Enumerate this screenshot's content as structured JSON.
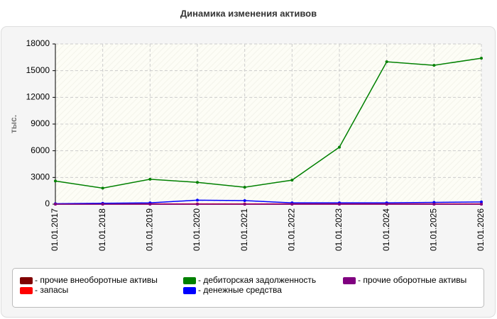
{
  "chart_data": {
    "type": "line",
    "title": "Динамика изменения активов",
    "y_label": "тыс.",
    "categories": [
      "01.01.2017",
      "01.01.2018",
      "01.01.2019",
      "01.01.2020",
      "01.01.2021",
      "01.01.2022",
      "01.01.2023",
      "01.01.2024",
      "01.01.2025",
      "01.01.2026"
    ],
    "series": [
      {
        "name": "- прочие внеоборотные активы",
        "color": "#800000",
        "values": [
          0,
          0,
          0,
          0,
          0,
          0,
          0,
          0,
          0,
          0
        ]
      },
      {
        "name": "- запасы",
        "color": "#ff0000",
        "values": [
          30,
          30,
          30,
          30,
          30,
          30,
          30,
          30,
          30,
          30
        ]
      },
      {
        "name": "- дебиторская задолженность",
        "color": "#008000",
        "values": [
          2600,
          1800,
          2800,
          2450,
          1900,
          2700,
          6400,
          16000,
          15600,
          16400
        ]
      },
      {
        "name": "- денежные средства",
        "color": "#0000ff",
        "values": [
          50,
          100,
          150,
          450,
          400,
          150,
          150,
          150,
          200,
          250
        ]
      },
      {
        "name": "- прочие оборотные активы",
        "color": "#800080",
        "values": [
          0,
          0,
          0,
          0,
          0,
          0,
          0,
          0,
          0,
          0
        ]
      }
    ],
    "ylim": [
      0,
      18000
    ],
    "yticks": [
      0,
      3000,
      6000,
      9000,
      12000,
      15000,
      18000
    ],
    "grid": true
  }
}
